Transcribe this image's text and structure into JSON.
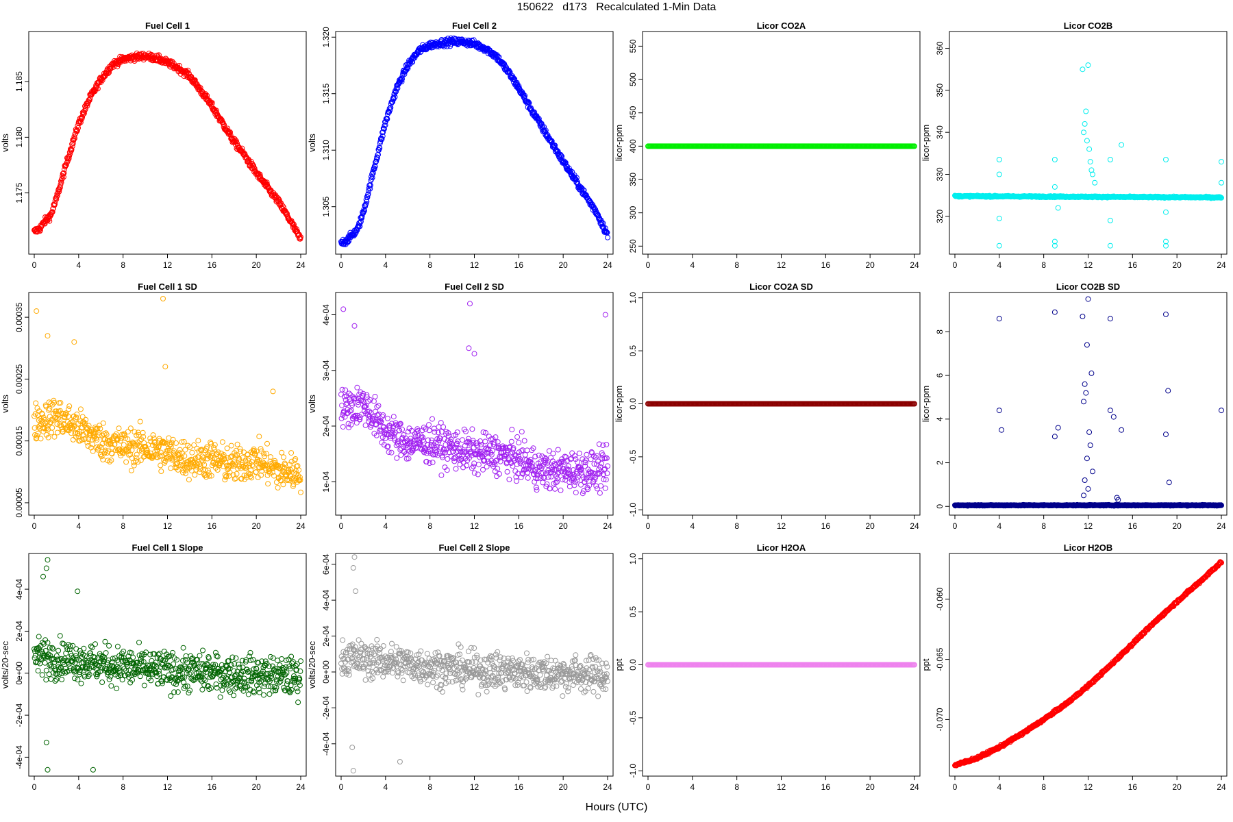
{
  "page": {
    "title": "150622   d173   Recalculated 1-Min Data",
    "xlabel": "Hours (UTC)"
  },
  "chart_data": [
    {
      "type": "scatter",
      "title": "Fuel Cell 1",
      "ylabel": "volts",
      "xlim": [
        0,
        24
      ],
      "xticks": [
        0,
        4,
        8,
        12,
        16,
        20,
        24
      ],
      "ylim": [
        1.1695,
        1.1895
      ],
      "yticks": [
        1.175,
        1.18,
        1.185
      ],
      "yticklabels": [
        "1.175",
        "1.180",
        "1.185"
      ],
      "color": "#ff0000",
      "x": [
        0,
        0.5,
        1,
        1.5,
        2,
        3,
        4,
        5,
        6,
        7,
        8,
        9,
        10,
        11,
        12,
        13,
        14,
        15,
        16,
        17,
        18,
        19,
        20,
        21,
        22,
        23,
        24
      ],
      "y": [
        1.1715,
        1.1718,
        1.1725,
        1.173,
        1.1745,
        1.178,
        1.1812,
        1.1835,
        1.1852,
        1.1865,
        1.187,
        1.1872,
        1.1873,
        1.1871,
        1.1867,
        1.1862,
        1.1855,
        1.1842,
        1.1828,
        1.1812,
        1.1796,
        1.1783,
        1.1768,
        1.1755,
        1.1742,
        1.1726,
        1.1708
      ],
      "noise": 0.0003
    },
    {
      "type": "scatter",
      "title": "Fuel Cell 2",
      "ylabel": "volts",
      "xlim": [
        0,
        24
      ],
      "xticks": [
        0,
        4,
        8,
        12,
        16,
        20,
        24
      ],
      "ylim": [
        1.3008,
        1.3205
      ],
      "yticks": [
        1.305,
        1.31,
        1.315,
        1.32
      ],
      "yticklabels": [
        "1.305",
        "1.310",
        "1.315",
        "1.320"
      ],
      "color": "#0000ff",
      "x": [
        0,
        0.5,
        1,
        1.5,
        2,
        3,
        4,
        5,
        6,
        7,
        8,
        9,
        10,
        11,
        12,
        13,
        14,
        15,
        16,
        17,
        18,
        19,
        20,
        21,
        22,
        23,
        24
      ],
      "y": [
        1.3018,
        1.302,
        1.3025,
        1.303,
        1.3045,
        1.3085,
        1.3125,
        1.3155,
        1.3175,
        1.3188,
        1.3193,
        1.3195,
        1.3196,
        1.3196,
        1.3194,
        1.319,
        1.3183,
        1.317,
        1.3155,
        1.3138,
        1.3122,
        1.3106,
        1.309,
        1.3075,
        1.306,
        1.3045,
        1.3025
      ],
      "noise": 0.0003
    },
    {
      "type": "scatter",
      "title": "Licor CO2A",
      "ylabel": "licor-ppm",
      "xlim": [
        0,
        24
      ],
      "xticks": [
        0,
        4,
        8,
        12,
        16,
        20,
        24
      ],
      "ylim": [
        238,
        572
      ],
      "yticks": [
        250,
        300,
        350,
        400,
        450,
        500,
        550
      ],
      "yticklabels": [
        "250",
        "300",
        "350",
        "400",
        "450",
        "500",
        "550"
      ],
      "color": "#00ee00",
      "x": [
        0,
        24
      ],
      "y": [
        400,
        400
      ],
      "noise": 0
    },
    {
      "type": "scatter",
      "title": "Licor CO2B",
      "ylabel": "licor-ppm",
      "xlim": [
        0,
        24
      ],
      "xticks": [
        0,
        4,
        8,
        12,
        16,
        20,
        24
      ],
      "ylim": [
        311,
        364
      ],
      "yticks": [
        320,
        330,
        340,
        350,
        360
      ],
      "yticklabels": [
        "320",
        "330",
        "340",
        "350",
        "360"
      ],
      "color": "#00eeee",
      "x": [
        0,
        24
      ],
      "y": [
        324.8,
        324.5
      ],
      "noise": 0.15,
      "extra_points": [
        [
          4,
          333.5
        ],
        [
          4,
          330
        ],
        [
          4,
          319.5
        ],
        [
          4,
          313
        ],
        [
          9,
          333.5
        ],
        [
          9,
          327
        ],
        [
          9,
          314
        ],
        [
          9,
          313
        ],
        [
          9.3,
          322
        ],
        [
          11.5,
          355
        ],
        [
          11.8,
          345
        ],
        [
          12,
          356
        ],
        [
          11.6,
          340
        ],
        [
          11.9,
          338
        ],
        [
          12.2,
          333
        ],
        [
          12.4,
          330
        ],
        [
          12.6,
          328
        ],
        [
          12.1,
          336
        ],
        [
          11.7,
          342
        ],
        [
          12.3,
          331
        ],
        [
          14,
          333.5
        ],
        [
          14,
          319
        ],
        [
          14,
          313
        ],
        [
          15,
          337
        ],
        [
          19,
          333.5
        ],
        [
          19,
          321
        ],
        [
          19,
          314
        ],
        [
          19,
          313
        ],
        [
          24,
          333
        ],
        [
          24,
          328
        ]
      ]
    },
    {
      "type": "scatter",
      "title": "Fuel Cell 1 SD",
      "ylabel": "volts",
      "xlim": [
        0,
        24
      ],
      "xticks": [
        0,
        4,
        8,
        12,
        16,
        20,
        24
      ],
      "ylim": [
        3e-05,
        0.00039
      ],
      "yticks": [
        5e-05,
        0.00015,
        0.00025,
        0.00035
      ],
      "yticklabels": [
        "0.00005",
        "0.00015",
        "0.00025",
        "0.00035"
      ],
      "color": "#ffaa00",
      "x": [
        0,
        2,
        4,
        6,
        8,
        10,
        12,
        14,
        16,
        18,
        20,
        22,
        24
      ],
      "y": [
        0.00018,
        0.00019,
        0.00017,
        0.00015,
        0.00014,
        0.00014,
        0.00013,
        0.00012,
        0.00012,
        0.00011,
        0.00012,
        0.0001,
        0.0001
      ],
      "noise": 3e-05,
      "extra_points": [
        [
          0.2,
          0.00036
        ],
        [
          11.6,
          0.00038
        ],
        [
          1.2,
          0.00032
        ],
        [
          3.6,
          0.00031
        ],
        [
          11.8,
          0.00027
        ],
        [
          21.5,
          0.00023
        ]
      ]
    },
    {
      "type": "scatter",
      "title": "Fuel Cell 2 SD",
      "ylabel": "volts",
      "xlim": [
        0,
        24
      ],
      "xticks": [
        0,
        4,
        8,
        12,
        16,
        20,
        24
      ],
      "ylim": [
        4e-05,
        0.00044
      ],
      "yticks": [
        0.0001,
        0.0002,
        0.0003,
        0.0004
      ],
      "yticklabels": [
        "1e-04",
        "2e-04",
        "3e-04",
        "4e-04"
      ],
      "color": "#a020f0",
      "x": [
        0,
        2,
        4,
        6,
        8,
        10,
        12,
        14,
        16,
        18,
        20,
        22,
        24
      ],
      "y": [
        0.00023,
        0.00024,
        0.00019,
        0.00017,
        0.00017,
        0.00016,
        0.00015,
        0.00015,
        0.00014,
        0.00012,
        0.00012,
        0.00012,
        0.00012
      ],
      "noise": 3.5e-05,
      "extra_points": [
        [
          0.2,
          0.00041
        ],
        [
          11.6,
          0.00042
        ],
        [
          1.2,
          0.00038
        ],
        [
          23.8,
          0.0004
        ],
        [
          11.5,
          0.00034
        ],
        [
          12,
          0.00033
        ]
      ]
    },
    {
      "type": "scatter",
      "title": "Licor CO2A SD",
      "ylabel": "licor-ppm",
      "xlim": [
        0,
        24
      ],
      "xticks": [
        0,
        4,
        8,
        12,
        16,
        20,
        24
      ],
      "ylim": [
        -1.05,
        1.05
      ],
      "yticks": [
        -1,
        -0.5,
        0,
        0.5,
        1
      ],
      "yticklabels": [
        "-1.0",
        "-0.5",
        "0.0",
        "0.5",
        "1.0"
      ],
      "color": "#8b0000",
      "x": [
        0,
        24
      ],
      "y": [
        0,
        0
      ],
      "noise": 0
    },
    {
      "type": "scatter",
      "title": "Licor CO2B SD",
      "ylabel": "licor-ppm",
      "xlim": [
        0,
        24
      ],
      "xticks": [
        0,
        4,
        8,
        12,
        16,
        20,
        24
      ],
      "ylim": [
        -0.4,
        9.8
      ],
      "yticks": [
        0,
        2,
        4,
        6,
        8
      ],
      "yticklabels": [
        "0",
        "2",
        "4",
        "6",
        "8"
      ],
      "color": "#00008b",
      "x": [
        0,
        24
      ],
      "y": [
        0.05,
        0.05
      ],
      "noise": 0.02,
      "extra_points": [
        [
          4,
          8.6
        ],
        [
          4,
          4.4
        ],
        [
          4.2,
          3.5
        ],
        [
          9,
          8.9
        ],
        [
          9,
          3.2
        ],
        [
          9.3,
          3.6
        ],
        [
          11.5,
          8.7
        ],
        [
          12,
          9.5
        ],
        [
          11.9,
          7.4
        ],
        [
          12.3,
          6.1
        ],
        [
          11.7,
          5.6
        ],
        [
          11.8,
          5.2
        ],
        [
          11.6,
          4.8
        ],
        [
          12.1,
          3.4
        ],
        [
          12.2,
          2.8
        ],
        [
          11.9,
          2.2
        ],
        [
          12.4,
          1.6
        ],
        [
          11.7,
          1.2
        ],
        [
          12,
          0.8
        ],
        [
          11.6,
          0.5
        ],
        [
          14,
          8.6
        ],
        [
          14,
          4.4
        ],
        [
          14.3,
          4.1
        ],
        [
          14.6,
          0.4
        ],
        [
          14.7,
          0.3
        ],
        [
          15,
          3.5
        ],
        [
          19,
          8.8
        ],
        [
          19,
          3.3
        ],
        [
          19.2,
          5.3
        ],
        [
          19.3,
          1.1
        ],
        [
          24,
          4.4
        ]
      ]
    },
    {
      "type": "scatter",
      "title": "Fuel Cell 1 Slope",
      "ylabel": "volts/20-sec",
      "xlim": [
        0,
        24
      ],
      "xticks": [
        0,
        4,
        8,
        12,
        16,
        20,
        24
      ],
      "ylim": [
        -0.00049,
        0.00057
      ],
      "yticks": [
        -0.0004,
        -0.0002,
        0,
        0.0002,
        0.0004
      ],
      "yticklabels": [
        "-4e-04",
        "-2e-04",
        "0e+00",
        "2e-04",
        "4e-04"
      ],
      "color": "#006400",
      "x": [
        0,
        4,
        8,
        12,
        16,
        20,
        24
      ],
      "y": [
        8e-05,
        6e-05,
        3e-05,
        1e-05,
        0,
        -1e-05,
        -2e-05
      ],
      "noise": 9e-05,
      "extra_points": [
        [
          1.2,
          0.00054
        ],
        [
          1.1,
          0.0005
        ],
        [
          0.8,
          0.00046
        ],
        [
          1.2,
          -0.00046
        ],
        [
          5.3,
          -0.00046
        ],
        [
          1.1,
          -0.00033
        ],
        [
          3.9,
          0.00039
        ]
      ]
    },
    {
      "type": "scatter",
      "title": "Fuel Cell 2 Slope",
      "ylabel": "volts/20-sec",
      "xlim": [
        0,
        24
      ],
      "xticks": [
        0,
        4,
        8,
        12,
        16,
        20,
        24
      ],
      "ylim": [
        -0.00058,
        0.00066
      ],
      "yticks": [
        -0.0004,
        -0.0002,
        0,
        0.0002,
        0.0004,
        0.0006
      ],
      "yticklabels": [
        "-4e-04",
        "-2e-04",
        "0e+00",
        "2e-04",
        "4e-04",
        "6e-04"
      ],
      "color": "#999999",
      "x": [
        0,
        4,
        8,
        12,
        16,
        20,
        24
      ],
      "y": [
        8e-05,
        6e-05,
        3e-05,
        1e-05,
        0,
        -1e-05,
        -2e-05
      ],
      "noise": 0.0001,
      "extra_points": [
        [
          1.2,
          0.00064
        ],
        [
          1.1,
          0.00058
        ],
        [
          1.1,
          -0.00055
        ],
        [
          5.3,
          -0.0005
        ],
        [
          1.3,
          0.00045
        ],
        [
          1,
          -0.00042
        ]
      ]
    },
    {
      "type": "scatter",
      "title": "Licor H2OA",
      "ylabel": "ppt",
      "xlim": [
        0,
        24
      ],
      "xticks": [
        0,
        4,
        8,
        12,
        16,
        20,
        24
      ],
      "ylim": [
        -1.05,
        1.05
      ],
      "yticks": [
        -1,
        -0.5,
        0,
        0.5,
        1
      ],
      "yticklabels": [
        "-1.0",
        "-0.5",
        "0.0",
        "0.5",
        "1.0"
      ],
      "color": "#ee82ee",
      "x": [
        0,
        24
      ],
      "y": [
        0,
        0
      ],
      "noise": 0
    },
    {
      "type": "scatter",
      "title": "Licor H2OB",
      "ylabel": "ppt",
      "xlim": [
        0,
        24
      ],
      "xticks": [
        0,
        4,
        8,
        12,
        16,
        20,
        24
      ],
      "ylim": [
        -0.0747,
        -0.0562
      ],
      "yticks": [
        -0.07,
        -0.065,
        -0.06
      ],
      "yticklabels": [
        "-0.070",
        "-0.065",
        "-0.060"
      ],
      "color": "#ff0000",
      "x": [
        0,
        2,
        4,
        6,
        8,
        10,
        12,
        14,
        16,
        18,
        20,
        22,
        24
      ],
      "y": [
        -0.0738,
        -0.0732,
        -0.0723,
        -0.0712,
        -0.07,
        -0.0687,
        -0.0672,
        -0.0655,
        -0.0637,
        -0.0619,
        -0.0602,
        -0.0586,
        -0.0569
      ],
      "noise": 0.0001
    }
  ]
}
